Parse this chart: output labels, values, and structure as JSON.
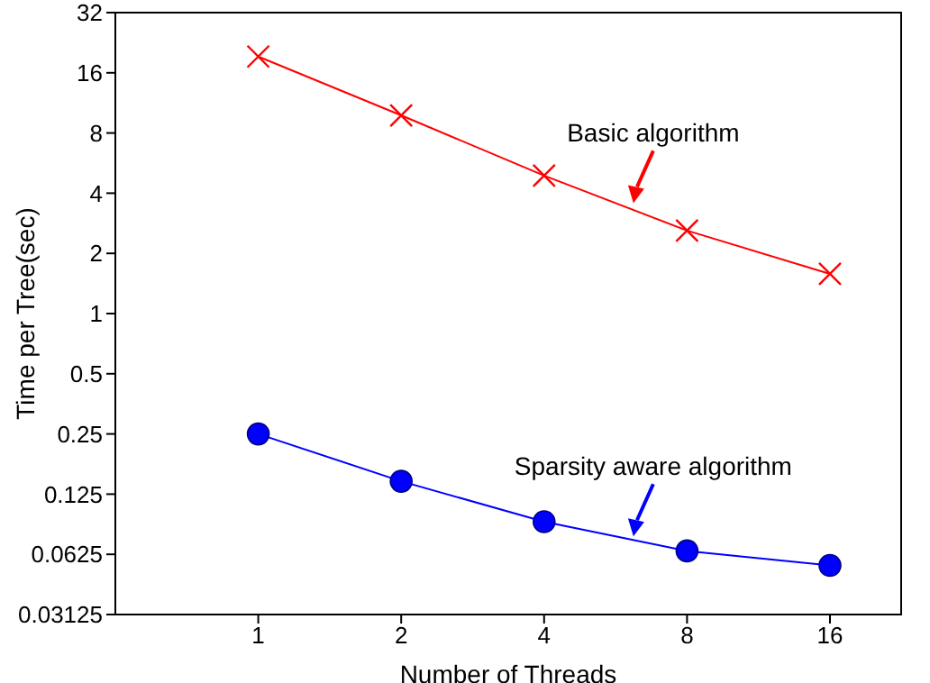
{
  "chart_data": {
    "type": "line",
    "xlabel": "Number of Threads",
    "ylabel": "Time per Tree(sec)",
    "x": [
      1,
      2,
      4,
      8,
      16
    ],
    "series": [
      {
        "name": "Basic algorithm",
        "color": "#ff0000",
        "marker": "cross",
        "values": [
          19.3,
          9.8,
          4.9,
          2.6,
          1.58
        ]
      },
      {
        "name": "Sparsity aware algorithm",
        "color": "#0000ff",
        "marker": "circle",
        "values": [
          0.25,
          0.145,
          0.091,
          0.065,
          0.055
        ]
      }
    ],
    "log": "xy",
    "xlim": [
      0.5,
      22.6
    ],
    "xticks": [
      1,
      2,
      4,
      8,
      16
    ],
    "ylim": [
      0.03125,
      32
    ],
    "yticks": [
      0.03125,
      0.0625,
      0.125,
      0.25,
      0.5,
      1,
      2,
      4,
      8,
      16,
      32
    ]
  }
}
